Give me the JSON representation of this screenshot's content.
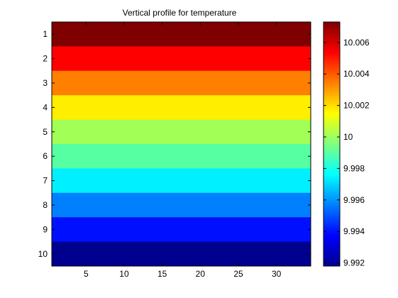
{
  "chart_data": {
    "type": "heatmap",
    "title": "Vertical profile for temperature",
    "xlabel": "",
    "ylabel": "",
    "xlim": [
      0.5,
      34.5
    ],
    "ylim": [
      10.5,
      0.5
    ],
    "y_reversed": true,
    "x_ticks": [
      5,
      10,
      15,
      20,
      25,
      30
    ],
    "y_ticks": [
      1,
      2,
      3,
      4,
      5,
      6,
      7,
      8,
      9,
      10
    ],
    "rows": [
      {
        "y": 1,
        "value": 10.0072,
        "color": "#800000"
      },
      {
        "y": 2,
        "value": 10.0056,
        "color": "#ff0000"
      },
      {
        "y": 3,
        "value": 10.004,
        "color": "#ff7f00"
      },
      {
        "y": 4,
        "value": 10.0024,
        "color": "#ffee00"
      },
      {
        "y": 5,
        "value": 10.0008,
        "color": "#a2ff55"
      },
      {
        "y": 6,
        "value": 9.9992,
        "color": "#55ffa2"
      },
      {
        "y": 7,
        "value": 9.9976,
        "color": "#00f0ff"
      },
      {
        "y": 8,
        "value": 9.996,
        "color": "#0080ff"
      },
      {
        "y": 9,
        "value": 9.9944,
        "color": "#0010ff"
      },
      {
        "y": 10,
        "value": 9.992,
        "color": "#00008f"
      }
    ],
    "colorbar": {
      "colormap": "jet",
      "min": 9.9918,
      "max": 10.0073,
      "ticks": [
        9.992,
        9.994,
        9.996,
        9.998,
        10,
        10.002,
        10.004,
        10.006
      ],
      "tick_labels": [
        "9.992",
        "9.994",
        "9.996",
        "9.998",
        "10",
        "10.002",
        "10.004",
        "10.006"
      ]
    },
    "grid": false,
    "legend": "none"
  }
}
